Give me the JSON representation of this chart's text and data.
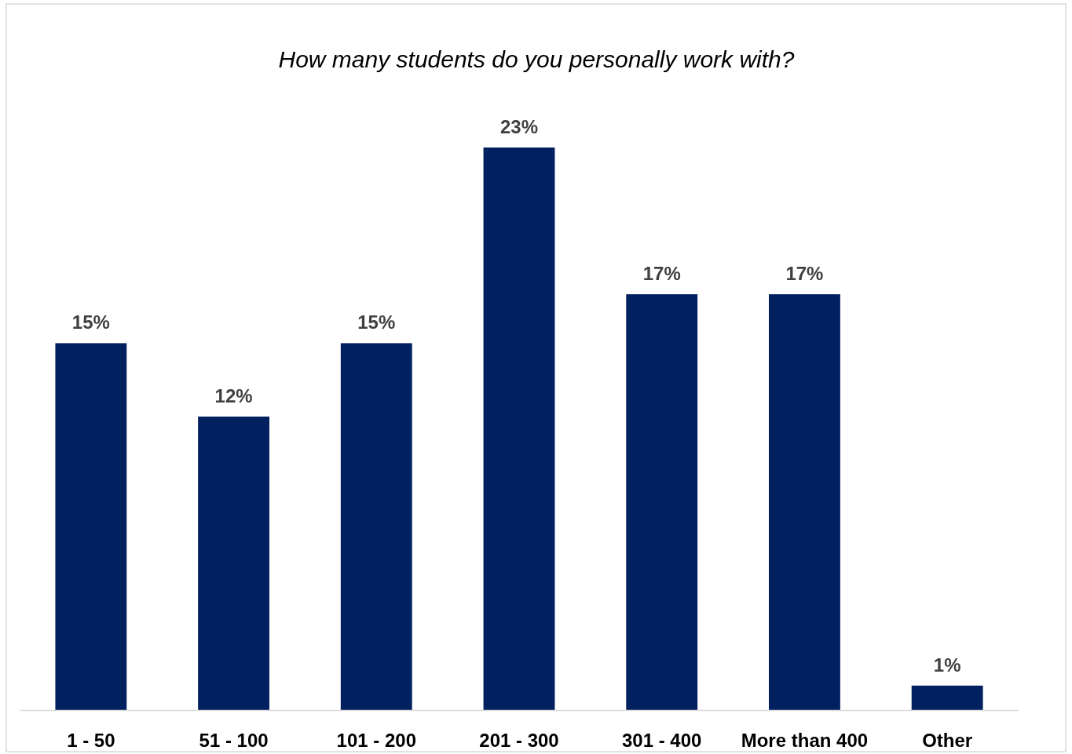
{
  "chart_data": {
    "type": "bar",
    "title": "How many students do you personally work with?",
    "categories": [
      "1 - 50",
      "51 - 100",
      "101 - 200",
      "201 - 300",
      "301 - 400",
      "More than 400",
      "Other"
    ],
    "values": [
      15,
      12,
      15,
      23,
      17,
      17,
      1
    ],
    "value_labels": [
      "15%",
      "12%",
      "15%",
      "23%",
      "17%",
      "17%",
      "1%"
    ],
    "color": "#002060"
  }
}
